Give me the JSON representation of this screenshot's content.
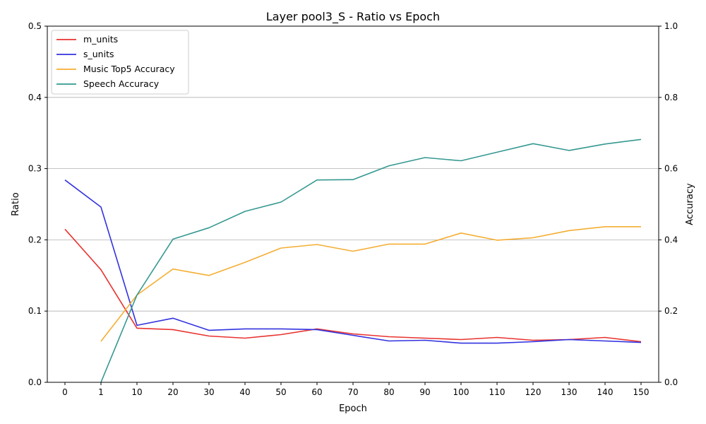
{
  "chart_data": {
    "type": "line",
    "title": "Layer pool3_S - Ratio vs Epoch",
    "xlabel": "Epoch",
    "ylabel": "Ratio",
    "ylabel_right": "Accuracy",
    "categories": [
      "0",
      "1",
      "10",
      "20",
      "30",
      "40",
      "50",
      "60",
      "70",
      "80",
      "90",
      "100",
      "110",
      "120",
      "130",
      "140",
      "150"
    ],
    "ylim": [
      0,
      0.5
    ],
    "ylim_right": [
      0,
      1.0
    ],
    "yticks": [
      "0.0",
      "0.1",
      "0.2",
      "0.3",
      "0.4",
      "0.5"
    ],
    "yticks_right": [
      "0.0",
      "0.2",
      "0.4",
      "0.6",
      "0.8",
      "1.0"
    ],
    "grid": "y",
    "legend_position": "top-left",
    "series": [
      {
        "name": "m_units",
        "axis": "left",
        "color": "#e8332f",
        "values": [
          0.215,
          0.158,
          0.076,
          0.074,
          0.065,
          0.062,
          0.067,
          0.075,
          0.068,
          0.064,
          0.062,
          0.06,
          0.063,
          0.059,
          0.06,
          0.063,
          0.057
        ]
      },
      {
        "name": "s_units",
        "axis": "left",
        "color": "#3232e0",
        "values": [
          0.284,
          0.246,
          0.08,
          0.09,
          0.073,
          0.075,
          0.075,
          0.074,
          0.066,
          0.058,
          0.059,
          0.055,
          0.055,
          0.057,
          0.06,
          0.058,
          0.056
        ]
      },
      {
        "name": "Music Top5 Accuracy",
        "axis": "right",
        "color": "#f5ae33",
        "values": [
          null,
          0.115,
          0.245,
          0.318,
          0.3,
          0.337,
          0.377,
          0.387,
          0.368,
          0.388,
          0.388,
          0.419,
          0.399,
          0.406,
          0.426,
          0.437,
          0.437
        ]
      },
      {
        "name": "Speech Accuracy",
        "axis": "right",
        "color": "#359891",
        "values": [
          null,
          0.0,
          0.245,
          0.402,
          0.434,
          0.48,
          0.506,
          0.568,
          0.569,
          0.608,
          0.631,
          0.622,
          0.646,
          0.67,
          0.651,
          0.669,
          0.682
        ]
      }
    ]
  }
}
